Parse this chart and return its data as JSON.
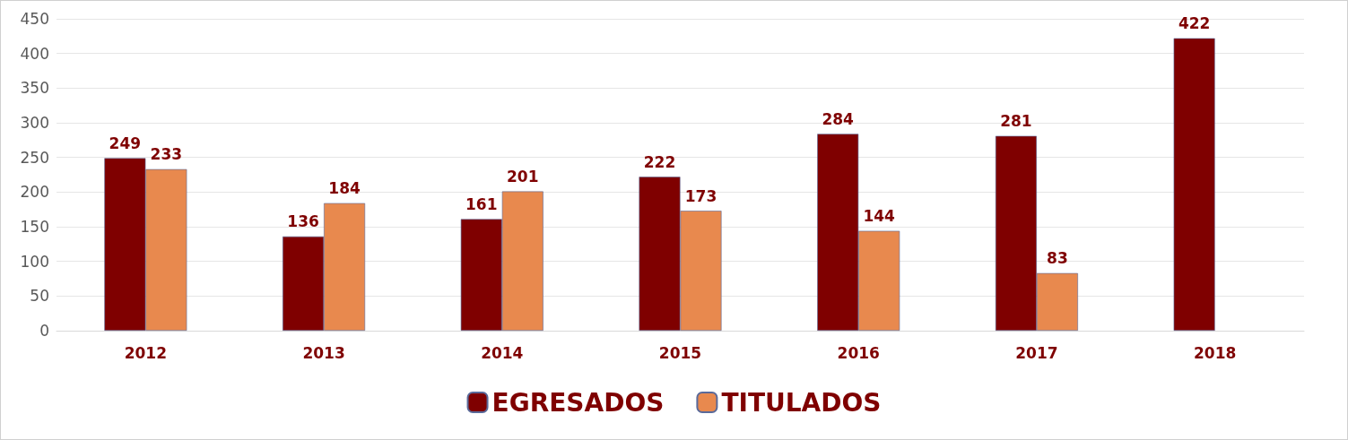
{
  "chart_data": {
    "type": "bar",
    "categories": [
      "2012",
      "2013",
      "2014",
      "2015",
      "2016",
      "2017",
      "2018"
    ],
    "series": [
      {
        "name": "EGRESADOS",
        "color": "#7f0000",
        "values": [
          249,
          136,
          161,
          222,
          284,
          281,
          422
        ]
      },
      {
        "name": "TITULADOS",
        "color": "#e8894e",
        "values": [
          233,
          184,
          201,
          173,
          144,
          83,
          null
        ]
      }
    ],
    "ylim": [
      0,
      450
    ],
    "yticks": [
      0,
      50,
      100,
      150,
      200,
      250,
      300,
      350,
      400,
      450
    ],
    "grid": "y",
    "legend": "bottom",
    "data_labels": true
  }
}
